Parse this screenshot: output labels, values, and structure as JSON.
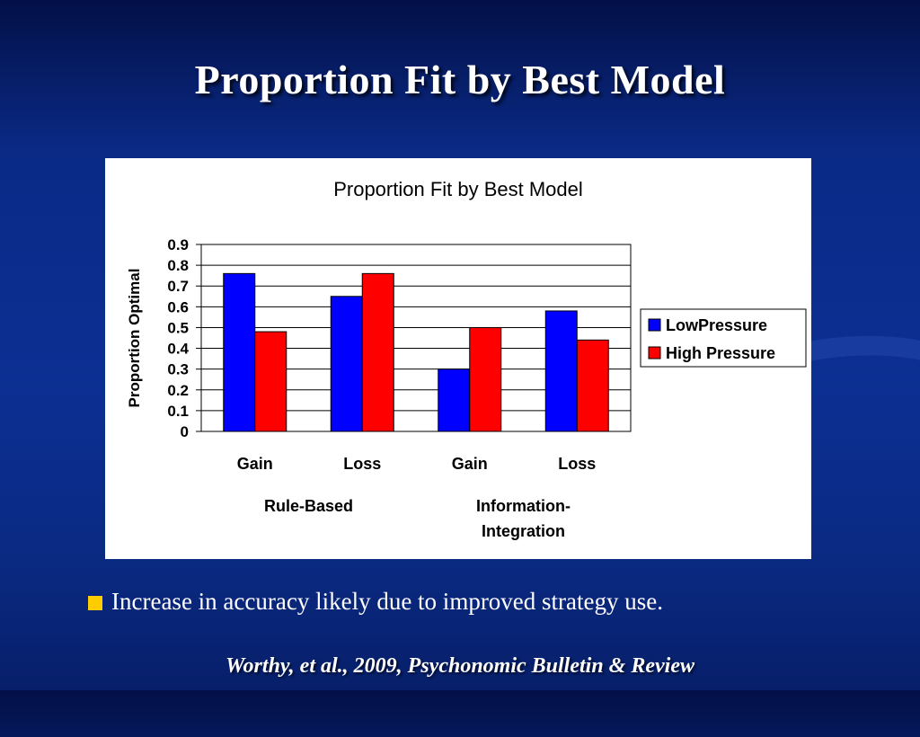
{
  "slide": {
    "title": "Proportion Fit by Best Model",
    "bullet": "Increase in accuracy likely due to improved strategy use.",
    "citation": "Worthy, et al., 2009, Psychonomic Bulletin & Review"
  },
  "colors": {
    "bullet_square": "#ffcc00",
    "low_pressure": "#0000ff",
    "high_pressure": "#ff0000"
  },
  "chart_data": {
    "type": "bar",
    "title": "Proportion Fit by Best Model",
    "ylabel": "Proportion Optimal",
    "xlabel": "",
    "ylim": [
      0,
      0.9
    ],
    "yticks": [
      "0",
      "0.1",
      "0.2",
      "0.3",
      "0.4",
      "0.5",
      "0.6",
      "0.7",
      "0.8",
      "0.9"
    ],
    "categories": [
      "Gain",
      "Loss",
      "Gain",
      "Loss"
    ],
    "groups": [
      {
        "label": "Rule-Based",
        "categories": [
          "Gain",
          "Loss"
        ]
      },
      {
        "label": "Information-\nIntegration",
        "categories": [
          "Gain",
          "Loss"
        ]
      }
    ],
    "series": [
      {
        "name": "LowPressure",
        "color": "#0000ff",
        "values": [
          0.76,
          0.65,
          0.3,
          0.58
        ]
      },
      {
        "name": "High Pressure",
        "color": "#ff0000",
        "values": [
          0.48,
          0.76,
          0.5,
          0.44
        ]
      }
    ],
    "grid": true,
    "legend": "right"
  }
}
